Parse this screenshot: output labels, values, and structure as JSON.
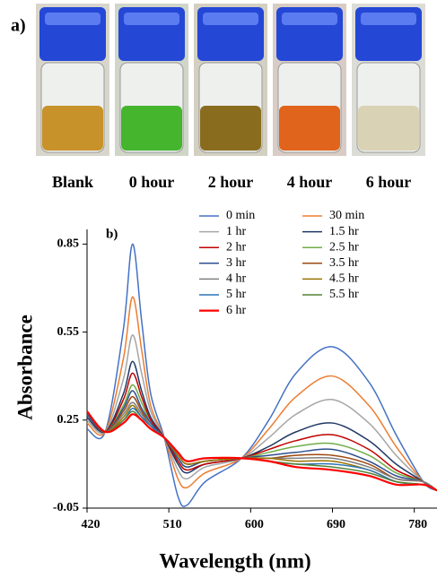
{
  "panel_a": {
    "label": "a)",
    "samples": [
      "Blank",
      "0 hour",
      "2 hour",
      "4 hour",
      "6 hour"
    ]
  },
  "chart_data": {
    "type": "line",
    "panel_label": "b)",
    "x_label": "Wavelength (nm)",
    "y_label": "Absorbance",
    "x": [
      420,
      440,
      460,
      470,
      480,
      490,
      505,
      520,
      530,
      550,
      590,
      620,
      650,
      690,
      730,
      760,
      790,
      805
    ],
    "xlim": [
      420,
      805
    ],
    "xticks": [
      420,
      510,
      600,
      690,
      780
    ],
    "ylim": [
      -0.05,
      0.9
    ],
    "yticks": [
      -0.05,
      0.25,
      0.55,
      0.85
    ],
    "grid": false,
    "legend": "top",
    "series": [
      {
        "name": "0 min",
        "color": "#4472c4",
        "values": [
          0.22,
          0.21,
          0.56,
          0.85,
          0.59,
          0.34,
          0.19,
          -0.01,
          -0.04,
          0.04,
          0.12,
          0.25,
          0.41,
          0.5,
          0.38,
          0.2,
          0.04,
          0.01
        ]
      },
      {
        "name": "30 min",
        "color": "#ed7d31",
        "values": [
          0.24,
          0.21,
          0.46,
          0.67,
          0.49,
          0.3,
          0.19,
          0.05,
          0.02,
          0.07,
          0.12,
          0.22,
          0.33,
          0.4,
          0.3,
          0.16,
          0.04,
          0.01
        ]
      },
      {
        "name": "1 hr",
        "color": "#a5a5a5",
        "values": [
          0.25,
          0.21,
          0.39,
          0.54,
          0.41,
          0.28,
          0.19,
          0.08,
          0.05,
          0.09,
          0.12,
          0.19,
          0.27,
          0.32,
          0.24,
          0.13,
          0.04,
          0.01
        ]
      },
      {
        "name": "1.5 hr",
        "color": "#1f3864",
        "values": [
          0.26,
          0.21,
          0.34,
          0.45,
          0.35,
          0.26,
          0.19,
          0.1,
          0.07,
          0.1,
          0.12,
          0.16,
          0.21,
          0.24,
          0.18,
          0.1,
          0.04,
          0.01
        ]
      },
      {
        "name": "2 hr",
        "color": "#c00000",
        "values": [
          0.27,
          0.21,
          0.32,
          0.41,
          0.33,
          0.25,
          0.19,
          0.11,
          0.08,
          0.1,
          0.12,
          0.15,
          0.18,
          0.2,
          0.15,
          0.08,
          0.04,
          0.01
        ]
      },
      {
        "name": "2.5 hr",
        "color": "#70ad47",
        "values": [
          0.27,
          0.21,
          0.3,
          0.37,
          0.31,
          0.24,
          0.19,
          0.12,
          0.09,
          0.11,
          0.12,
          0.14,
          0.16,
          0.17,
          0.13,
          0.07,
          0.04,
          0.01
        ]
      },
      {
        "name": "3 hr",
        "color": "#2f4f8f",
        "values": [
          0.27,
          0.21,
          0.29,
          0.35,
          0.29,
          0.24,
          0.19,
          0.12,
          0.09,
          0.11,
          0.12,
          0.13,
          0.14,
          0.15,
          0.11,
          0.06,
          0.04,
          0.01
        ]
      },
      {
        "name": "3.5 hr",
        "color": "#9e480e",
        "values": [
          0.28,
          0.21,
          0.28,
          0.33,
          0.28,
          0.23,
          0.19,
          0.13,
          0.1,
          0.11,
          0.12,
          0.12,
          0.13,
          0.13,
          0.1,
          0.05,
          0.04,
          0.01
        ]
      },
      {
        "name": "4 hr",
        "color": "#7f7f7f",
        "values": [
          0.28,
          0.21,
          0.27,
          0.31,
          0.27,
          0.23,
          0.19,
          0.13,
          0.1,
          0.11,
          0.12,
          0.12,
          0.12,
          0.12,
          0.09,
          0.05,
          0.04,
          0.01
        ]
      },
      {
        "name": "4.5 hr",
        "color": "#997300",
        "values": [
          0.28,
          0.21,
          0.26,
          0.3,
          0.26,
          0.23,
          0.19,
          0.13,
          0.1,
          0.11,
          0.12,
          0.12,
          0.11,
          0.11,
          0.08,
          0.04,
          0.03,
          0.01
        ]
      },
      {
        "name": "5 hr",
        "color": "#2e75b6",
        "values": [
          0.28,
          0.21,
          0.25,
          0.29,
          0.26,
          0.23,
          0.19,
          0.14,
          0.11,
          0.12,
          0.12,
          0.11,
          0.1,
          0.1,
          0.08,
          0.04,
          0.03,
          0.01
        ]
      },
      {
        "name": "5.5 hr",
        "color": "#548235",
        "values": [
          0.28,
          0.21,
          0.25,
          0.28,
          0.25,
          0.22,
          0.19,
          0.14,
          0.11,
          0.12,
          0.12,
          0.11,
          0.1,
          0.09,
          0.07,
          0.04,
          0.03,
          0.01
        ]
      },
      {
        "name": "6 hr",
        "color": "#ff0000",
        "values": [
          0.28,
          0.21,
          0.24,
          0.27,
          0.25,
          0.22,
          0.19,
          0.14,
          0.11,
          0.12,
          0.12,
          0.11,
          0.09,
          0.08,
          0.06,
          0.03,
          0.03,
          0.01
        ]
      }
    ]
  }
}
